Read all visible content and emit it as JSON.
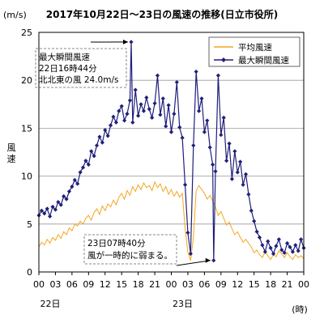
{
  "chart_data": {
    "type": "line",
    "title": "2017年10月22日～23日の風速の推移(日立市役所)",
    "y_unit": "(m/s)",
    "ylabel": "風速",
    "xlabel": "(時)",
    "ylim": [
      0,
      25
    ],
    "y_ticks": [
      0,
      5,
      10,
      15,
      20,
      25
    ],
    "x_ticks": [
      "00",
      "03",
      "06",
      "09",
      "12",
      "15",
      "18",
      "21",
      "00",
      "03",
      "06",
      "09",
      "12",
      "15",
      "18",
      "21",
      "00"
    ],
    "x_day_labels": [
      "22日",
      "23日"
    ],
    "x_range_hours": [
      0,
      48
    ],
    "grid": true,
    "legend_position": "top-right",
    "series": [
      {
        "name": "平均風速",
        "color": "#f5a623",
        "marker": "none",
        "x_hours": [
          0,
          0.5,
          1,
          1.5,
          2,
          2.5,
          3,
          3.5,
          4,
          4.5,
          5,
          5.5,
          6,
          6.5,
          7,
          7.5,
          8,
          8.5,
          9,
          9.5,
          10,
          10.5,
          11,
          11.5,
          12,
          12.5,
          13,
          13.5,
          14,
          14.5,
          15,
          15.5,
          16,
          16.5,
          17,
          17.5,
          18,
          18.5,
          19,
          19.5,
          20,
          20.5,
          21,
          21.5,
          22,
          22.5,
          23,
          23.5,
          24,
          24.5,
          25,
          25.5,
          26,
          26.5,
          27,
          27.5,
          28,
          28.5,
          29,
          29.5,
          30,
          30.5,
          31,
          31.5,
          32,
          32.5,
          33,
          33.5,
          34,
          34.5,
          35,
          35.5,
          36,
          36.5,
          37,
          37.5,
          38,
          38.5,
          39,
          39.5,
          40,
          40.5,
          41,
          41.5,
          42,
          42.5,
          43,
          43.5,
          44,
          44.5,
          45,
          45.5,
          46,
          46.5,
          47,
          47.5,
          48
        ],
        "values": [
          2.6,
          3.1,
          2.8,
          3.4,
          3.0,
          3.6,
          3.3,
          3.9,
          3.5,
          4.2,
          3.9,
          4.6,
          4.3,
          5.0,
          4.8,
          5.3,
          5.0,
          5.6,
          5.9,
          5.4,
          6.2,
          6.6,
          6.0,
          6.9,
          6.4,
          7.1,
          6.8,
          7.5,
          7.0,
          7.8,
          8.2,
          7.6,
          8.5,
          8.0,
          8.9,
          8.4,
          9.1,
          8.6,
          9.3,
          8.8,
          9.0,
          8.5,
          9.4,
          8.8,
          9.2,
          8.4,
          8.9,
          8.1,
          8.6,
          7.9,
          8.4,
          7.8,
          8.2,
          4.5,
          2.1,
          1.2,
          3.6,
          8.5,
          9.0,
          8.6,
          8.2,
          7.6,
          8.0,
          7.4,
          6.8,
          5.9,
          6.3,
          5.6,
          4.9,
          5.2,
          4.5,
          3.9,
          4.2,
          3.6,
          3.1,
          3.4,
          3.0,
          2.6,
          2.0,
          2.3,
          1.8,
          1.5,
          2.1,
          1.7,
          1.3,
          1.8,
          1.6,
          2.2,
          1.9,
          1.5,
          2.0,
          1.6,
          1.3,
          1.8,
          1.5,
          1.7,
          1.4
        ]
      },
      {
        "name": "最大瞬間風速",
        "color": "#1f1f7a",
        "marker": "diamond",
        "x_hours": [
          0,
          0.5,
          1,
          1.5,
          2,
          2.5,
          3,
          3.5,
          4,
          4.5,
          5,
          5.5,
          6,
          6.5,
          7,
          7.5,
          8,
          8.5,
          9,
          9.5,
          10,
          10.5,
          11,
          11.5,
          12,
          12.5,
          13,
          13.5,
          14,
          14.5,
          15,
          15.5,
          16,
          16.5,
          16.73,
          17,
          17.5,
          18,
          18.5,
          19,
          19.5,
          20,
          20.5,
          21,
          21.5,
          22,
          22.5,
          23,
          23.5,
          24,
          24.5,
          25,
          25.5,
          26,
          26.5,
          27,
          27.5,
          28,
          28.5,
          29,
          29.5,
          30,
          30.5,
          31,
          31.5,
          31.67,
          32,
          32.5,
          33,
          33.5,
          34,
          34.5,
          35,
          35.5,
          36,
          36.5,
          37,
          37.5,
          38,
          38.5,
          39,
          39.5,
          40,
          40.5,
          41,
          41.5,
          42,
          42.5,
          43,
          43.5,
          44,
          44.5,
          45,
          45.5,
          46,
          46.5,
          47,
          47.5,
          48
        ],
        "values": [
          5.9,
          6.4,
          6.1,
          6.6,
          5.8,
          6.8,
          6.5,
          7.3,
          7.0,
          7.9,
          7.6,
          8.4,
          8.9,
          9.6,
          9.2,
          10.4,
          10.9,
          11.6,
          11.2,
          12.6,
          12.1,
          13.2,
          14.1,
          13.5,
          14.8,
          14.2,
          15.3,
          16.2,
          15.6,
          16.8,
          17.3,
          15.8,
          16.5,
          17.9,
          24.0,
          15.6,
          19.0,
          16.3,
          17.5,
          16.8,
          18.2,
          17.0,
          16.1,
          17.6,
          20.5,
          16.4,
          18.1,
          15.2,
          17.4,
          14.6,
          16.5,
          19.8,
          15.1,
          14.0,
          9.1,
          4.1,
          1.9,
          13.2,
          20.9,
          16.8,
          18.1,
          14.6,
          15.8,
          13.0,
          11.2,
          1.2,
          10.5,
          20.5,
          14.3,
          16.1,
          11.6,
          13.4,
          9.7,
          12.6,
          10.4,
          11.5,
          9.1,
          10.2,
          8.1,
          6.4,
          5.3,
          4.2,
          3.6,
          2.8,
          2.1,
          3.2,
          2.5,
          1.9,
          2.7,
          3.4,
          2.3,
          2.0,
          3.0,
          2.6,
          2.1,
          2.8,
          2.2,
          3.4,
          2.5
        ]
      }
    ],
    "annotations": [
      {
        "lines": [
          "最大瞬間風速",
          "22日16時44分",
          "北北東の風 24.0m/s"
        ],
        "x_hours": 16.73,
        "y": 24.0
      },
      {
        "lines": [
          "23日07時40分",
          "風が一時的に弱まる。"
        ],
        "x_hours": 31.67,
        "y": 1.2
      }
    ]
  }
}
